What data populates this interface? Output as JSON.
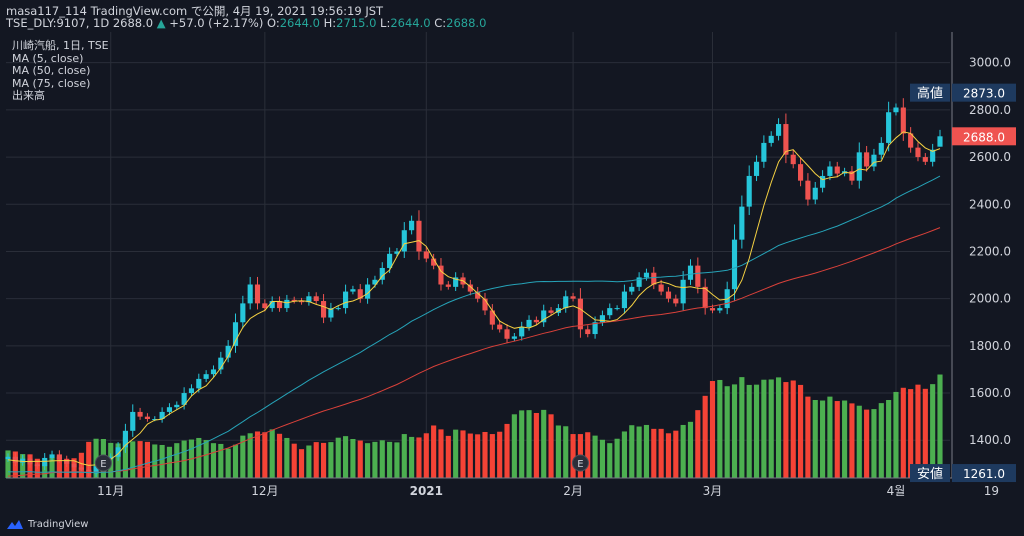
{
  "header": {
    "line1": "masa117_114 TradingView.com で公開, 4月 19, 2021 19:56:19 JST",
    "symbol_line": "TSE_DLY:9107, 1D 2688.0",
    "arrow": "▲",
    "change": "+57.0 (+2.17%)",
    "o_label": "O:",
    "o": "2644.0",
    "h_label": "H:",
    "h": "2715.0",
    "l_label": "L:",
    "l": "2644.0",
    "c_label": "C:",
    "c": "2688.0"
  },
  "legend": {
    "title": "川崎汽船, 1日, TSE",
    "ma5": "MA (5, close)",
    "ma50": "MA (50, close)",
    "ma75": "MA (75, close)",
    "volume": "出来高"
  },
  "footer": {
    "brand": "TradingView"
  },
  "colors": {
    "background": "#131722",
    "grid": "#2a2e39",
    "text": "#d1d4dc",
    "up": "#26c6da",
    "down": "#ef5350",
    "vol_up": "#4caf50",
    "vol_down": "#f44336",
    "ma5": "#f5d142",
    "ma50": "#26a3b8",
    "ma75": "#d9413a",
    "label_bg": "#1e3a5f",
    "price_label_bg": "#ef5350"
  },
  "chart_data": {
    "type": "candlestick",
    "ylim": [
      1240,
      3130
    ],
    "y_ticks": [
      "1400.0",
      "1600.0",
      "1800.0",
      "2000.0",
      "2200.0",
      "2400.0",
      "2600.0",
      "2800.0",
      "3000.0"
    ],
    "x_ticks": [
      {
        "i": 14,
        "label": "11月",
        "bold": false
      },
      {
        "i": 35,
        "label": "12月",
        "bold": false
      },
      {
        "i": 57,
        "label": "2021",
        "bold": true
      },
      {
        "i": 77,
        "label": "2月",
        "bold": false
      },
      {
        "i": 96,
        "label": "3月",
        "bold": false
      },
      {
        "i": 121,
        "label": "4월",
        "bold": false
      },
      {
        "i": 134,
        "label": "19",
        "bold": false
      }
    ],
    "high_label": {
      "text": "高値",
      "value": "2873.0",
      "price": 2873
    },
    "low_label": {
      "text": "安値",
      "value": "1261.0",
      "price": 1261
    },
    "last_price": {
      "value": "2688.0",
      "price": 2688
    },
    "earnings_markers": [
      {
        "i": 13,
        "label": "E"
      },
      {
        "i": 78,
        "label": "E"
      }
    ],
    "closes": [
      1330,
      1305,
      1322,
      1298,
      1290,
      1325,
      1340,
      1318,
      1300,
      1285,
      1275,
      1260,
      1290,
      1320,
      1330,
      1370,
      1440,
      1520,
      1500,
      1490,
      1490,
      1520,
      1540,
      1550,
      1600,
      1620,
      1660,
      1680,
      1700,
      1750,
      1800,
      1900,
      1980,
      2060,
      1980,
      1960,
      1990,
      1960,
      1995,
      1990,
      1985,
      2010,
      1990,
      1920,
      1960,
      1960,
      2030,
      2040,
      2000,
      2060,
      2080,
      2130,
      2190,
      2200,
      2290,
      2330,
      2200,
      2170,
      2140,
      2060,
      2050,
      2090,
      2060,
      2030,
      2000,
      1950,
      1890,
      1870,
      1830,
      1840,
      1880,
      1910,
      1900,
      1950,
      1940,
      1960,
      2010,
      2000,
      1870,
      1850,
      1900,
      1930,
      1960,
      1960,
      2030,
      2050,
      2090,
      2110,
      2060,
      2030,
      2000,
      1980,
      2080,
      2140,
      2050,
      1960,
      1950,
      1960,
      2040,
      2250,
      2390,
      2520,
      2580,
      2660,
      2690,
      2740,
      2610,
      2570,
      2500,
      2420,
      2470,
      2520,
      2560,
      2530,
      2540,
      2500,
      2620,
      2560,
      2610,
      2660,
      2790,
      2810,
      2700,
      2640,
      2600,
      2580,
      2631,
      2688
    ],
    "volumes": [
      10.6,
      10.2,
      9.2,
      9.1,
      7.4,
      5.9,
      7.9,
      8.2,
      7.4,
      7.6,
      9.7,
      13.9,
      15.1,
      15.0,
      13.5,
      13.3,
      15.7,
      14.1,
      14.2,
      13.9,
      12.9,
      12.7,
      12.0,
      13.4,
      14.4,
      14.8,
      15.4,
      14.6,
      13.4,
      13.1,
      11.3,
      12.8,
      16.3,
      17.2,
      17.9,
      17.6,
      18.7,
      17.0,
      15.4,
      13.2,
      11.1,
      12.5,
      13.8,
      13.5,
      13.8,
      15.5,
      16.1,
      15.0,
      14.4,
      13.4,
      13.9,
      14.5,
      13.9,
      13.7,
      16.9,
      15.8,
      15.6,
      17.2,
      20.2,
      18.7,
      16.2,
      18.6,
      18.3,
      17.1,
      16.8,
      17.7,
      16.9,
      17.8,
      20.8,
      24.5,
      26.0,
      26.1,
      25.0,
      26.2,
      24.5,
      20.2,
      19.9,
      16.9,
      16.9,
      17.6,
      16.3,
      14.7,
      13.4,
      15.1,
      17.9,
      20.3,
      19.8,
      20.4,
      18.9,
      18.9,
      17.2,
      18.2,
      20.4,
      21.6,
      26.1,
      31.6,
      37.3,
      37.7,
      35.3,
      36.0,
      38.8,
      35.8,
      35.9,
      37.8,
      37.9,
      38.7,
      36.9,
      37.5,
      35.8,
      31.3,
      30.0,
      29.8,
      31.3,
      29.6,
      29.8,
      28.7,
      27.8,
      26.3,
      26.5,
      28.8,
      30.0,
      33.1,
      34.7,
      34.2,
      35.9,
      34.3,
      36.1,
      39.8
    ],
    "ma5": [
      1317.1,
      1312.7,
      1310.4,
      1310.0,
      1311.0,
      1310.4,
      1312.4,
      1313.6,
      1313.8,
      1313.2,
      1301.1,
      1293.5,
      1295.7,
      1310.0,
      1319.3,
      1342.2,
      1378.8,
      1403.8,
      1429.9,
      1468.1,
      1485.3,
      1489.8,
      1511.2,
      1529.3,
      1547.1,
      1587.6,
      1614.3,
      1630.8,
      1666.2,
      1706.3,
      1756.2,
      1821.1,
      1877.8,
      1916.1,
      1935.5,
      1950.6,
      1987.9,
      1988.5,
      1981.9,
      1988.8,
      1991.1,
      1988.0,
      1975.6,
      1966.3,
      1953.6,
      1970.2,
      1983.7,
      1990.2,
      2003.1,
      2022.0,
      2054.6,
      2096.5,
      2121.1,
      2178.4,
      2232.7,
      2239.3,
      2246.1,
      2221.4,
      2167.9,
      2116.0,
      2093.1,
      2082.4,
      2076.3,
      2051.3,
      2023.2,
      1995.6,
      1949.3,
      1905.0,
      1887.4,
      1874.2,
      1880.3,
      1875.6,
      1888.4,
      1911.2,
      1929.6,
      1948.5,
      1962.1,
      1969.5,
      1956.0,
      1932.7,
      1910.0,
      1907.5,
      1904.1,
      1911.3,
      1938.4,
      1971.4,
      2012.8,
      2042.9,
      2062.8,
      2072.0,
      2063.9,
      2051.2,
      2046.9,
      2050.8,
      2043.7,
      2043.4,
      2017.5,
      1994.1,
      1998.0,
      2020.5,
      2078.8,
      2170.2,
      2282.3,
      2395.3,
      2492.1,
      2580.1,
      2624.0,
      2631.3,
      2596.6,
      2563.8,
      2530.0,
      2504.0,
      2512.7,
      2516.5,
      2536.3,
      2531.4,
      2549.6,
      2544.7,
      2577.9,
      2582.9,
      2648.9,
      2681.6,
      2706.6,
      2700.6,
      2665.9,
      2639.0,
      2624.6,
      2635.8
    ],
    "ma50": [
      1266.4,
      1265.8,
      1266.5,
      1267.0,
      1264.1,
      1264.1,
      1265.9,
      1264.9,
      1264.3,
      1264.8,
      1264.6,
      1263.0,
      1263.4,
      1264.0,
      1265.2,
      1270.5,
      1276.2,
      1285.7,
      1293.7,
      1303.1,
      1311.1,
      1320.3,
      1331.1,
      1341.2,
      1351.5,
      1363.2,
      1377.6,
      1391.1,
      1406.6,
      1422.5,
      1437.9,
      1458.5,
      1478.7,
      1499.6,
      1517.6,
      1537.4,
      1557.4,
      1576.3,
      1596.7,
      1615.9,
      1634.7,
      1654.3,
      1671.8,
      1690.1,
      1706.5,
      1722.8,
      1739.3,
      1755.7,
      1772.3,
      1791.7,
      1809.6,
      1828.6,
      1848.0,
      1864.3,
      1883.7,
      1904.4,
      1920.5,
      1936.6,
      1953.8,
      1969.4,
      1983.6,
      1996.6,
      2007.8,
      2018.3,
      2027.0,
      2035.5,
      2043.0,
      2049.2,
      2055.9,
      2060.2,
      2063.2,
      2068.1,
      2071.4,
      2072.6,
      2072.2,
      2073.0,
      2073.2,
      2073.7,
      2073.5,
      2073.1,
      2074.6,
      2074.4,
      2073.1,
      2071.3,
      2073.2,
      2076.5,
      2081.4,
      2086.2,
      2089.5,
      2091.5,
      2093.8,
      2095.0,
      2098.9,
      2103.7,
      2107.7,
      2110.1,
      2112.7,
      2116.0,
      2120.1,
      2129.9,
      2141.5,
      2158.0,
      2173.8,
      2190.9,
      2207.3,
      2225.2,
      2236.6,
      2246.8,
      2257.2,
      2266.6,
      2275.7,
      2285.3,
      2296.8,
      2307.4,
      2320.7,
      2334.2,
      2347.4,
      2361.8,
      2375.0,
      2389.0,
      2404.6,
      2425.7,
      2442.3,
      2457.6,
      2472.0,
      2487.4,
      2503.3,
      2519.5
    ],
    "ma75": [
      1247.9,
      1249.4,
      1252.0,
      1255.2,
      1256.2,
      1258.4,
      1262.7,
      1264.2,
      1265.3,
      1266.4,
      1266.1,
      1264.5,
      1264.7,
      1265.0,
      1265.7,
      1268.8,
      1272.3,
      1278.8,
      1283.6,
      1288.6,
      1292.9,
      1297.5,
      1303.4,
      1308.3,
      1313.9,
      1320.9,
      1329.6,
      1337.8,
      1347.9,
      1357.5,
      1367.2,
      1379.9,
      1393.0,
      1406.7,
      1417.5,
      1430.1,
      1442.6,
      1454.8,
      1466.7,
      1478.3,
      1489.6,
      1501.6,
      1512.9,
      1524.1,
      1533.4,
      1543.1,
      1553.2,
      1563.7,
      1573.1,
      1584.6,
      1597.3,
      1610.1,
      1623.4,
      1636.1,
      1652.1,
      1667.6,
      1683.5,
      1698.3,
      1712.7,
      1724.5,
      1735.8,
      1747.0,
      1757.6,
      1767.2,
      1777.7,
      1787.8,
      1797.1,
      1804.8,
      1812.5,
      1819.9,
      1827.8,
      1836.4,
      1844.8,
      1853.0,
      1860.3,
      1868.3,
      1876.4,
      1882.6,
      1885.9,
      1889.9,
      1894.6,
      1898.2,
      1901.9,
      1905.6,
      1910.8,
      1915.8,
      1921.4,
      1926.4,
      1929.7,
      1932.9,
      1937.5,
      1942.4,
      1948.7,
      1955.3,
      1960.4,
      1963.4,
      1968.2,
      1973.9,
      1980.1,
      1990.6,
      2002.0,
      2014.5,
      2027.0,
      2039.5,
      2051.9,
      2064.8,
      2074.9,
      2083.6,
      2092.0,
      2100.0,
      2108.5,
      2117.9,
      2128.0,
      2137.5,
      2148.1,
      2158.9,
      2170.5,
      2182.3,
      2194.0,
      2206.0,
      2218.0,
      2232.2,
      2244.0,
      2255.5,
      2266.0,
      2277.1,
      2288.9,
      2301.0
    ]
  }
}
